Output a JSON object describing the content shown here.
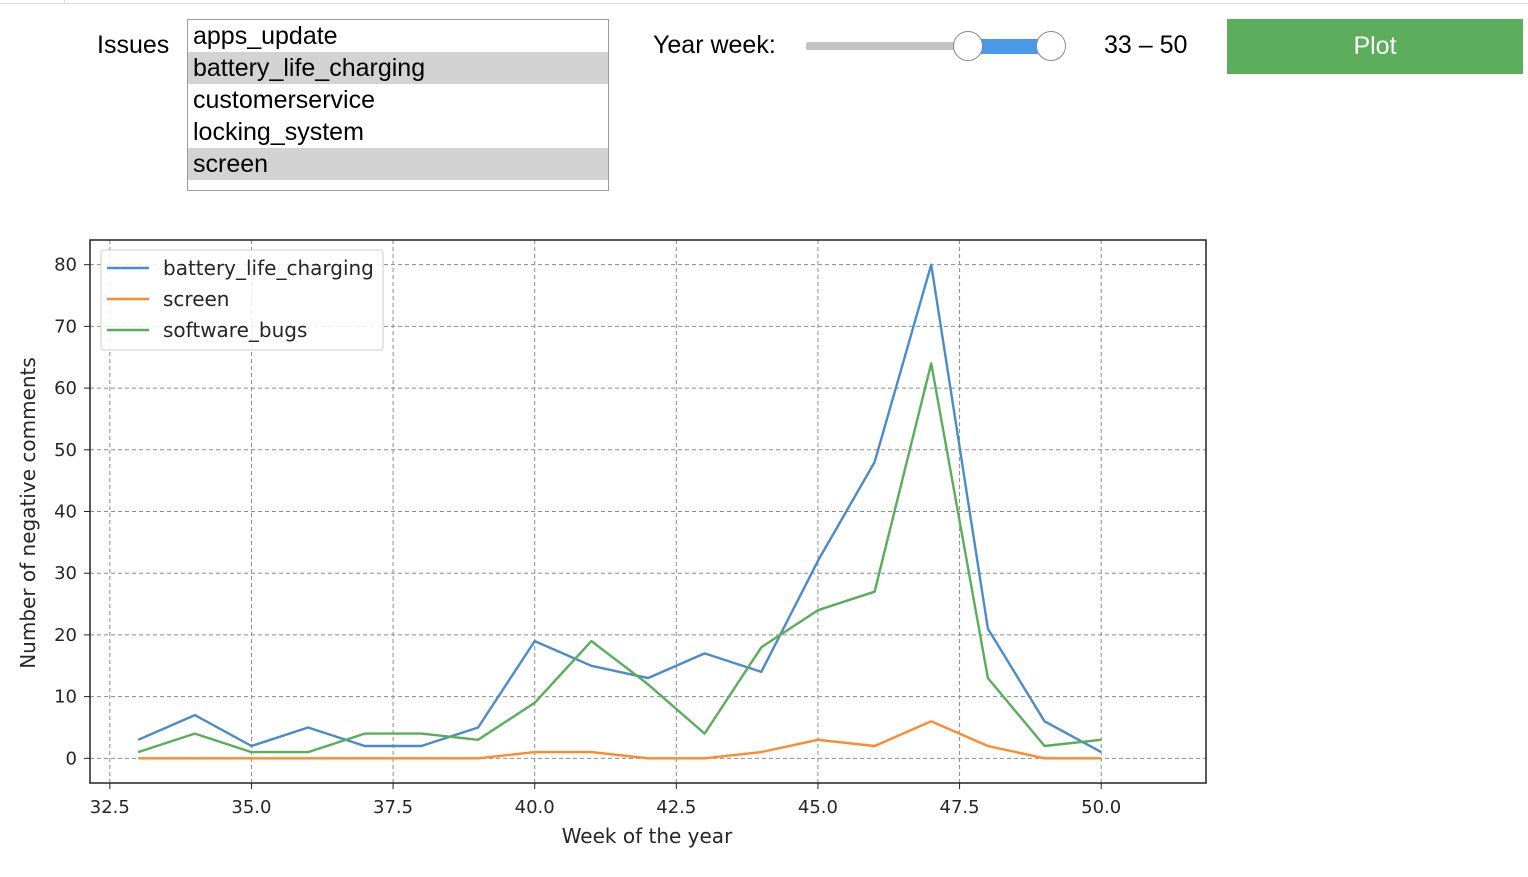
{
  "issues": {
    "label": "Issues",
    "options": [
      {
        "label": "apps_update",
        "selected": false
      },
      {
        "label": "battery_life_charging",
        "selected": true
      },
      {
        "label": "customerservice",
        "selected": false
      },
      {
        "label": "locking_system",
        "selected": false
      },
      {
        "label": "screen",
        "selected": true
      }
    ]
  },
  "year_week": {
    "label": "Year week:",
    "min": 0,
    "max": 52,
    "low": 33,
    "high": 50,
    "value_text": "33 – 50"
  },
  "plot_button": {
    "label": "Plot",
    "color": "#5cad5c"
  },
  "chart_data": {
    "type": "line",
    "title": "",
    "xlabel": "Week of the year",
    "ylabel": "Number of negative comments",
    "xlim": [
      32.15,
      51.85
    ],
    "ylim": [
      -4,
      84
    ],
    "xticks": [
      32.5,
      35.0,
      37.5,
      40.0,
      42.5,
      45.0,
      47.5,
      50.0
    ],
    "xtick_labels": [
      "32.5",
      "35.0",
      "37.5",
      "40.0",
      "42.5",
      "45.0",
      "47.5",
      "50.0"
    ],
    "yticks": [
      0,
      10,
      20,
      30,
      40,
      50,
      60,
      70,
      80
    ],
    "ytick_labels": [
      "0",
      "10",
      "20",
      "30",
      "40",
      "50",
      "60",
      "70",
      "80"
    ],
    "grid": true,
    "legend_position": "top-left",
    "x": [
      33,
      34,
      35,
      36,
      37,
      38,
      39,
      40,
      41,
      42,
      43,
      44,
      45,
      46,
      47,
      48,
      49,
      50
    ],
    "series": [
      {
        "name": "battery_life_charging",
        "color": "#4c8bc9",
        "values": [
          3,
          7,
          2,
          5,
          2,
          2,
          5,
          19,
          15,
          13,
          17,
          14,
          32,
          48,
          80,
          21,
          6,
          1
        ]
      },
      {
        "name": "screen",
        "color": "#ff8a2e",
        "values": [
          0,
          0,
          0,
          0,
          0,
          0,
          0,
          1,
          1,
          0,
          0,
          1,
          3,
          2,
          6,
          2,
          0,
          0
        ]
      },
      {
        "name": "software_bugs",
        "color": "#5aad5a",
        "values": [
          1,
          4,
          1,
          1,
          4,
          4,
          3,
          9,
          19,
          12,
          4,
          18,
          24,
          27,
          64,
          13,
          2,
          3
        ]
      }
    ]
  }
}
